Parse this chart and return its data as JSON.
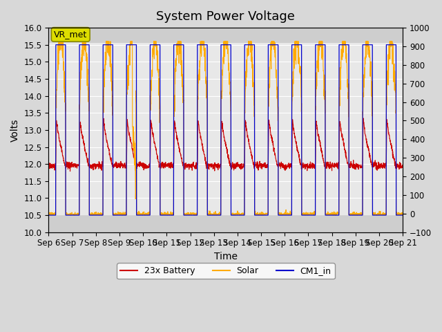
{
  "title": "System Power Voltage",
  "xlabel": "Time",
  "ylabel_left": "Volts",
  "ylim_left": [
    10.0,
    16.0
  ],
  "ylim_right": [
    -100,
    1000
  ],
  "yticks_left": [
    10.0,
    10.5,
    11.0,
    11.5,
    12.0,
    12.5,
    13.0,
    13.5,
    14.0,
    14.5,
    15.0,
    15.5,
    16.0
  ],
  "yticks_right": [
    -100,
    0,
    100,
    200,
    300,
    400,
    500,
    600,
    700,
    800,
    900,
    1000
  ],
  "xtick_labels": [
    "Sep 6",
    "Sep 7",
    "Sep 8",
    "Sep 9",
    "Sep 10",
    "Sep 11",
    "Sep 12",
    "Sep 13",
    "Sep 14",
    "Sep 15",
    "Sep 16",
    "Sep 17",
    "Sep 18",
    "Sep 19",
    "Sep 20",
    "Sep 21"
  ],
  "xtick_positions": [
    0,
    1,
    2,
    3,
    4,
    5,
    6,
    7,
    8,
    9,
    10,
    11,
    12,
    13,
    14,
    15
  ],
  "legend_labels": [
    "23x Battery",
    "Solar",
    "CM1_in"
  ],
  "battery_color": "#cc0000",
  "solar_color": "#ffaa00",
  "cm1_color": "#0000cc",
  "fig_bg_color": "#d8d8d8",
  "ax_bg_color": "#e8e8e8",
  "band_color": "#c8c8c8",
  "grid_color": "#ffffff",
  "vr_met_face": "#dddd00",
  "vr_met_edge": "#888800",
  "title_fontsize": 13,
  "label_fontsize": 10,
  "tick_fontsize": 8.5,
  "legend_fontsize": 9,
  "days": 15,
  "n_per_day": 144,
  "day_start": 0.3,
  "day_end": 0.72
}
